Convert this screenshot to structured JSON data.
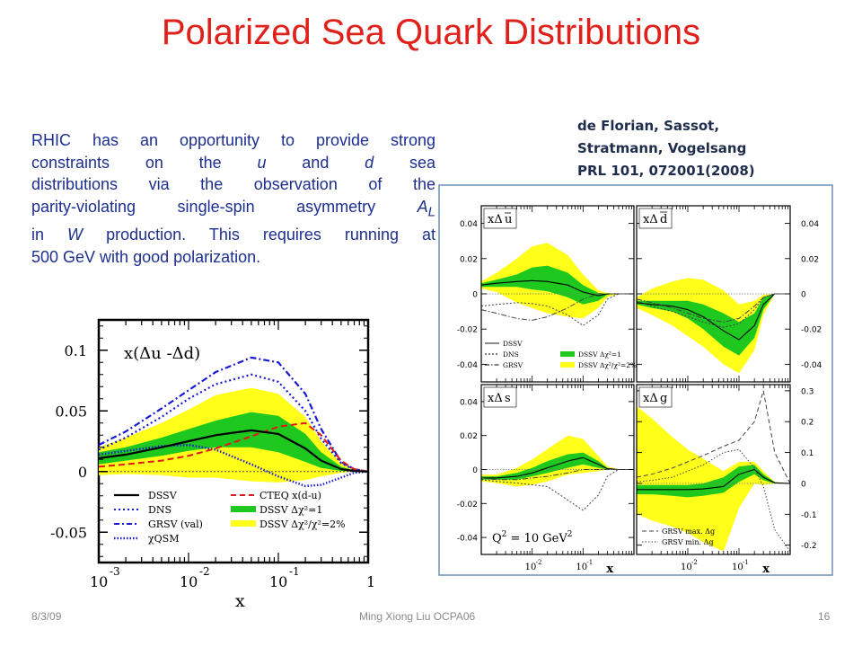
{
  "slide": {
    "title": "Polarized Sea Quark Distributions",
    "reference": [
      "de Florian, Sassot,",
      "Stratmann, Vogelsang",
      "PRL 101, 072001(2008)"
    ],
    "paragraph": {
      "lines": [
        {
          "a": "RHIC has an opportunity to provide strong"
        },
        {
          "a": "constraints on the ",
          "b": "u",
          "c": " and ",
          "d": "d",
          "e": " sea"
        },
        {
          "a": "distributions via the observation of the"
        },
        {
          "a": "parity-violating single-spin asymmetry ",
          "b": "A",
          "c": "L"
        },
        {
          "a": "in ",
          "b": "W",
          "c": " production.  This requires running at"
        },
        {
          "a": "500 GeV with good polarization."
        }
      ]
    },
    "footer": {
      "date": "8/3/09",
      "center": "Ming Xiong Liu  OCPA06",
      "page": "16"
    }
  },
  "colors": {
    "title": "#e0201b",
    "text": "#1d2f8f",
    "green": "#1ec81e",
    "yellow": "#ffff1a",
    "dns_blue": "#1a1ad6",
    "cteq_red": "#e01818"
  },
  "chart_data": [
    {
      "type": "line",
      "annotation": "x(Δu -Δd)",
      "xlabel": "x",
      "xscale": "log",
      "xlim": [
        0.001,
        1
      ],
      "ylim": [
        -0.075,
        0.125
      ],
      "xticklabels": [
        {
          "base": "10",
          "exp": "-3"
        },
        {
          "base": "10",
          "exp": "-2"
        },
        {
          "base": "10",
          "exp": "-1"
        },
        {
          "base": "1",
          "exp": ""
        }
      ],
      "xticks": [
        0.001,
        0.01,
        0.1,
        1
      ],
      "yticks": [
        0.1,
        0.05,
        0,
        -0.05
      ],
      "yticklabels": [
        "0.1",
        "0.05",
        "0",
        "-0.05"
      ],
      "legend": [
        {
          "name": "DSSV",
          "style": "solid-black"
        },
        {
          "name": "DNS",
          "style": "dotted-blue"
        },
        {
          "name": "GRSV (val)",
          "style": "dashdot-blue"
        },
        {
          "name": "χQSM",
          "style": "dense-dot-blue"
        },
        {
          "name": "CTEQ x(d-u)",
          "style": "dashed-red"
        },
        {
          "name": "DSSV Δχ²=1",
          "style": "green-band"
        },
        {
          "name": "DSSV Δχ²/χ²=2%",
          "style": "yellow-band"
        }
      ],
      "x": [
        0.001,
        0.002,
        0.005,
        0.01,
        0.02,
        0.05,
        0.1,
        0.2,
        0.3,
        0.5,
        0.7,
        1.0
      ],
      "series": [
        {
          "name": "DSSV",
          "values": [
            0.011,
            0.014,
            0.02,
            0.025,
            0.03,
            0.034,
            0.031,
            0.019,
            0.009,
            0.002,
            0.0005,
            0
          ]
        },
        {
          "name": "DSSV Δχ²=1 upper",
          "values": [
            0.016,
            0.02,
            0.028,
            0.035,
            0.042,
            0.049,
            0.046,
            0.031,
            0.016,
            0.004,
            0.001,
            0
          ]
        },
        {
          "name": "DSSV Δχ²=1 lower",
          "values": [
            0.006,
            0.009,
            0.013,
            0.017,
            0.02,
            0.02,
            0.016,
            0.008,
            0.003,
            0.0005,
            0,
            0
          ]
        },
        {
          "name": "DSSV Δχ²/χ²=2% upper",
          "values": [
            0.02,
            0.028,
            0.04,
            0.051,
            0.063,
            0.069,
            0.064,
            0.045,
            0.025,
            0.007,
            0.002,
            0
          ]
        },
        {
          "name": "DSSV Δχ²/χ²=2% lower",
          "values": [
            -0.003,
            -0.002,
            -0.003,
            -0.005,
            -0.005,
            -0.008,
            -0.009,
            -0.007,
            -0.004,
            -0.001,
            0,
            0
          ]
        },
        {
          "name": "DNS",
          "values": [
            0.018,
            0.028,
            0.045,
            0.06,
            0.072,
            0.08,
            0.074,
            0.05,
            0.027,
            0.007,
            0.0015,
            0
          ]
        },
        {
          "name": "GRSV (val)",
          "values": [
            0.022,
            0.033,
            0.052,
            0.067,
            0.082,
            0.094,
            0.09,
            0.064,
            0.035,
            0.008,
            0.002,
            0
          ]
        },
        {
          "name": "χQSM",
          "values": [
            0.014,
            0.017,
            0.021,
            0.022,
            0.018,
            0.006,
            -0.004,
            -0.012,
            -0.011,
            -0.005,
            -0.001,
            0
          ]
        },
        {
          "name": "CTEQ x(d-u)",
          "values": [
            0.004,
            0.006,
            0.009,
            0.013,
            0.019,
            0.029,
            0.037,
            0.04,
            0.03,
            0.009,
            0.002,
            0
          ]
        }
      ]
    },
    {
      "type": "line",
      "panels": [
        {
          "label": {
            "pre": "xΔ",
            "q": "u"
          },
          "xlim": [
            0.001,
            1
          ],
          "ylim": [
            -0.05,
            0.05
          ],
          "yticks": [
            0.04,
            0.02,
            0,
            -0.02,
            -0.04
          ],
          "yticklabels": [
            "0.04",
            "0.02",
            "0",
            "-0.02",
            "-0.04"
          ],
          "x": [
            0.001,
            0.002,
            0.005,
            0.01,
            0.02,
            0.05,
            0.1,
            0.2,
            0.3,
            0.5,
            1.0
          ],
          "series": [
            {
              "name": "DSSV",
              "values": [
                0.005,
                0.006,
                0.007,
                0.0075,
                0.007,
                0.005,
                0.001,
                -0.001,
                0,
                0,
                0
              ]
            },
            {
              "name": "green upper",
              "values": [
                0.006,
                0.008,
                0.011,
                0.015,
                0.016,
                0.012,
                0.005,
                0.0005,
                0,
                0,
                0
              ]
            },
            {
              "name": "green lower",
              "values": [
                0.004,
                0.004,
                0.004,
                0.0025,
                0.0015,
                -0.002,
                -0.006,
                -0.004,
                -0.0005,
                0,
                0
              ]
            },
            {
              "name": "yellow upper",
              "values": [
                0.007,
                0.012,
                0.02,
                0.027,
                0.029,
                0.022,
                0.011,
                0.002,
                0.0005,
                0,
                0
              ]
            },
            {
              "name": "yellow lower",
              "values": [
                0.003,
                0.001,
                -0.005,
                -0.008,
                -0.011,
                -0.013,
                -0.014,
                -0.008,
                -0.002,
                0,
                0
              ]
            },
            {
              "name": "DNS",
              "values": [
                -0.007,
                -0.006,
                -0.005,
                -0.0055,
                -0.007,
                -0.012,
                -0.018,
                -0.012,
                -0.003,
                0,
                0
              ]
            },
            {
              "name": "GRSV",
              "values": [
                -0.009,
                -0.011,
                -0.014,
                -0.015,
                -0.013,
                -0.008,
                -0.003,
                0,
                0,
                0,
                0
              ]
            }
          ]
        },
        {
          "label": {
            "pre": "xΔ",
            "q": "d"
          },
          "xlim": [
            0.001,
            1
          ],
          "ylim": [
            -0.05,
            0.05
          ],
          "yticks": [
            0.04,
            0.02,
            0,
            -0.02,
            -0.04
          ],
          "yticklabels": [
            "0.04",
            "0.02",
            "0",
            "-0.02",
            "-0.04"
          ],
          "x": [
            0.001,
            0.002,
            0.005,
            0.01,
            0.02,
            0.05,
            0.1,
            0.2,
            0.3,
            0.5,
            1.0
          ],
          "series": [
            {
              "name": "DSSV",
              "values": [
                -0.005,
                -0.006,
                -0.007,
                -0.009,
                -0.013,
                -0.021,
                -0.026,
                -0.018,
                -0.006,
                0,
                0
              ]
            },
            {
              "name": "green upper",
              "values": [
                -0.004,
                -0.004,
                -0.004,
                -0.004,
                -0.006,
                -0.011,
                -0.016,
                -0.011,
                -0.002,
                0,
                0
              ]
            },
            {
              "name": "green lower",
              "values": [
                -0.006,
                -0.008,
                -0.01,
                -0.014,
                -0.02,
                -0.03,
                -0.035,
                -0.025,
                -0.009,
                0,
                0
              ]
            },
            {
              "name": "yellow upper",
              "values": [
                -0.002,
                0.003,
                0.007,
                0.009,
                0.008,
                0.002,
                -0.006,
                -0.004,
                -0.0005,
                0,
                0
              ]
            },
            {
              "name": "yellow lower",
              "values": [
                -0.008,
                -0.012,
                -0.018,
                -0.024,
                -0.03,
                -0.04,
                -0.045,
                -0.032,
                -0.012,
                0,
                0
              ]
            },
            {
              "name": "DNS",
              "values": [
                -0.004,
                -0.007,
                -0.01,
                -0.013,
                -0.016,
                -0.019,
                -0.017,
                -0.009,
                -0.002,
                0,
                0
              ]
            },
            {
              "name": "GRSV",
              "values": [
                -0.003,
                -0.005,
                -0.008,
                -0.011,
                -0.014,
                -0.016,
                -0.014,
                -0.007,
                -0.002,
                0,
                0
              ]
            }
          ]
        },
        {
          "label": {
            "pre": "xΔ",
            "q": "s"
          },
          "xlim": [
            0.001,
            1
          ],
          "ylim": [
            -0.05,
            0.05
          ],
          "yticks": [
            0.04,
            0.02,
            0,
            -0.02,
            -0.04
          ],
          "yticklabels": [
            "0.04",
            "0.02",
            "0",
            "-0.02",
            "-0.04"
          ],
          "xticklabels": [
            {
              "base": "10",
              "exp": "-2"
            },
            {
              "base": "10",
              "exp": "-1"
            }
          ],
          "xticks": [
            0.01,
            0.1
          ],
          "xlabel": "x",
          "annotation": {
            "pre": "Q",
            "exp": "2",
            "post": " = 10 GeV",
            "exp2": "2"
          },
          "x": [
            0.001,
            0.002,
            0.005,
            0.01,
            0.02,
            0.05,
            0.1,
            0.2,
            0.3,
            0.5,
            1.0
          ],
          "series": [
            {
              "name": "DSSV",
              "values": [
                -0.005,
                -0.005,
                -0.004,
                -0.002,
                0.001,
                0.005,
                0.007,
                0.003,
                0.0005,
                0,
                0
              ]
            },
            {
              "name": "green upper",
              "values": [
                -0.004,
                -0.004,
                -0.002,
                0.001,
                0.005,
                0.009,
                0.01,
                0.005,
                0.001,
                0,
                0
              ]
            },
            {
              "name": "green lower",
              "values": [
                -0.006,
                -0.006,
                -0.006,
                -0.004,
                -0.002,
                0.001,
                0.003,
                0.001,
                0,
                0,
                0
              ]
            },
            {
              "name": "yellow upper",
              "values": [
                -0.003,
                -0.003,
                0.001,
                0.006,
                0.012,
                0.02,
                0.018,
                0.008,
                0.002,
                0,
                0
              ]
            },
            {
              "name": "yellow lower",
              "values": [
                -0.007,
                -0.008,
                -0.01,
                -0.009,
                -0.007,
                -0.003,
                -0.002,
                -0.001,
                0,
                0,
                0
              ]
            },
            {
              "name": "DNS",
              "values": [
                -0.006,
                -0.007,
                -0.008,
                -0.009,
                -0.01,
                -0.018,
                -0.024,
                -0.015,
                -0.004,
                0,
                0
              ]
            },
            {
              "name": "GRSV",
              "values": [
                -0.005,
                -0.006,
                -0.006,
                -0.005,
                -0.004,
                -0.002,
                0,
                0,
                0,
                0,
                0
              ]
            }
          ]
        },
        {
          "label": {
            "pre": "xΔ",
            "q": "g"
          },
          "xlim": [
            0.001,
            1
          ],
          "ylim": [
            -0.23,
            0.32
          ],
          "yticks": [
            0.3,
            0.2,
            0.1,
            0,
            -0.1,
            -0.2
          ],
          "yticklabels": [
            "0.3",
            "0.2",
            "0.1",
            "0",
            "-0.1",
            "-0.2"
          ],
          "xticklabels": [
            {
              "base": "10",
              "exp": "-2"
            },
            {
              "base": "10",
              "exp": "-1"
            }
          ],
          "xticks": [
            0.01,
            0.1
          ],
          "xlabel": "x",
          "legend": [
            "GRSV max. Δg",
            "GRSV min. Δg"
          ],
          "x": [
            0.001,
            0.002,
            0.005,
            0.01,
            0.02,
            0.05,
            0.1,
            0.2,
            0.3,
            0.5,
            1.0
          ],
          "series": [
            {
              "name": "DSSV",
              "values": [
                -0.02,
                -0.02,
                -0.02,
                -0.02,
                -0.018,
                -0.01,
                0.03,
                0.045,
                0.02,
                0.002,
                0
              ]
            },
            {
              "name": "green upper",
              "values": [
                -0.005,
                -0.005,
                -0.005,
                -0.005,
                0,
                0.02,
                0.055,
                0.06,
                0.03,
                0.004,
                0
              ]
            },
            {
              "name": "green lower",
              "values": [
                -0.035,
                -0.035,
                -0.04,
                -0.045,
                -0.04,
                -0.03,
                0.005,
                0.03,
                0.01,
                0,
                0
              ]
            },
            {
              "name": "yellow upper",
              "values": [
                0.25,
                0.21,
                0.15,
                0.11,
                0.08,
                0.04,
                0.07,
                0.07,
                0.04,
                0.005,
                0
              ]
            },
            {
              "name": "yellow lower",
              "values": [
                -0.1,
                -0.12,
                -0.14,
                -0.16,
                -0.19,
                -0.22,
                -0.08,
                0,
                -0.005,
                0,
                0
              ]
            },
            {
              "name": "GRSV max. Δg",
              "values": [
                0.02,
                0.03,
                0.05,
                0.07,
                0.09,
                0.12,
                0.14,
                0.2,
                0.3,
                0.1,
                0
              ]
            },
            {
              "name": "GRSV min. Δg",
              "values": [
                0.005,
                0.01,
                0.02,
                0.04,
                0.06,
                0.1,
                0.11,
                0.05,
                -0.01,
                -0.15,
                -0.22
              ]
            }
          ]
        }
      ],
      "legend": [
        {
          "name": "DSSV",
          "style": "solid"
        },
        {
          "name": "DNS",
          "style": "dotted"
        },
        {
          "name": "GRSV",
          "style": "dashdot"
        },
        {
          "name": "DSSV Δχ²=1",
          "style": "green-band"
        },
        {
          "name": "DSSV Δχ²/χ²=2%",
          "style": "yellow-band"
        }
      ]
    }
  ]
}
